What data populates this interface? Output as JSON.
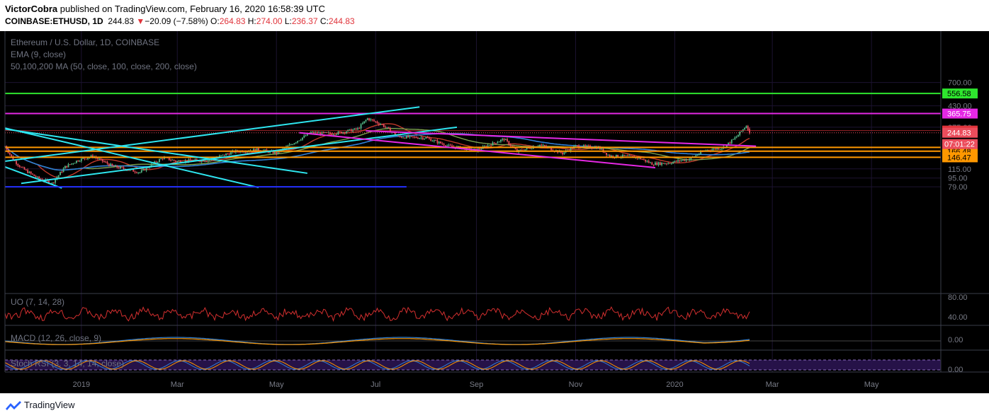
{
  "header": {
    "publisher": "VictorCobra",
    "published_line": " published on TradingView.com, February 16, 2020 16:58:39 UTC",
    "symbol": "COINBASE:ETHUSD, 1D",
    "last": "244.83",
    "change_arrow": "▼",
    "change": "−20.09 (−7.58%)",
    "o_label": "O:",
    "o": "264.83",
    "h_label": "H:",
    "h": "274.00",
    "l_label": "L:",
    "l": "236.37",
    "c_label": "C:",
    "c": "244.83"
  },
  "legend": {
    "title": "Ethereum / U.S. Dollar, 1D, COINBASE",
    "ema": "EMA (9, close)",
    "ma": "50,100,200 MA (50, close, 100, close, 200, close)"
  },
  "indicators": {
    "uo": "UO (7, 14, 28)",
    "macd": "MACD (12, 26, close, 9)",
    "stoch": "Stoch RSI (3, 3, 14, 14, close)"
  },
  "footer": {
    "brand": "TradingView"
  },
  "colors": {
    "up": "#53b987",
    "down": "#eb4d5c",
    "ema": "#c0392b",
    "ma50": "#7ba24f",
    "ma200": "#2f7fd6",
    "cyan": "#2ee6f0",
    "magenta": "#e528e5",
    "green": "#2ee62e",
    "orange": "#ff9800",
    "navy": "#2430ff",
    "uo": "#d32f2f"
  },
  "chart_data": {
    "type": "candlestick",
    "symbol": "COINBASE:ETHUSD",
    "interval": "1D",
    "price_axis_scale": "log",
    "price_ticks": [
      700,
      430,
      275,
      115,
      95,
      79
    ],
    "x_tick_labels": [
      "2019",
      "Mar",
      "May",
      "Jul",
      "Sep",
      "Nov",
      "2020",
      "Mar",
      "May"
    ],
    "time_range": [
      "2018-11-15",
      "2020-02-16"
    ],
    "last_candle": {
      "open": 264.83,
      "high": 274.0,
      "low": 236.37,
      "close": 244.83
    },
    "price_path": [
      [
        "2018-11-15",
        185
      ],
      [
        "2018-11-20",
        140
      ],
      [
        "2018-11-25",
        118
      ],
      [
        "2018-12-05",
        95
      ],
      [
        "2018-12-14",
        85
      ],
      [
        "2018-12-22",
        120
      ],
      [
        "2018-12-30",
        138
      ],
      [
        "2019-01-08",
        150
      ],
      [
        "2019-01-20",
        122
      ],
      [
        "2019-02-06",
        107
      ],
      [
        "2019-02-20",
        145
      ],
      [
        "2019-03-01",
        135
      ],
      [
        "2019-03-20",
        138
      ],
      [
        "2019-04-05",
        165
      ],
      [
        "2019-04-20",
        172
      ],
      [
        "2019-05-01",
        160
      ],
      [
        "2019-05-12",
        200
      ],
      [
        "2019-05-22",
        245
      ],
      [
        "2019-06-05",
        240
      ],
      [
        "2019-06-20",
        265
      ],
      [
        "2019-06-26",
        330
      ],
      [
        "2019-07-05",
        290
      ],
      [
        "2019-07-15",
        225
      ],
      [
        "2019-08-01",
        220
      ],
      [
        "2019-08-15",
        185
      ],
      [
        "2019-09-01",
        170
      ],
      [
        "2019-09-18",
        215
      ],
      [
        "2019-09-26",
        165
      ],
      [
        "2019-10-10",
        190
      ],
      [
        "2019-10-24",
        160
      ],
      [
        "2019-11-01",
        185
      ],
      [
        "2019-11-15",
        180
      ],
      [
        "2019-11-22",
        150
      ],
      [
        "2019-12-01",
        150
      ],
      [
        "2019-12-10",
        145
      ],
      [
        "2019-12-18",
        128
      ],
      [
        "2019-12-28",
        130
      ],
      [
        "2020-01-10",
        142
      ],
      [
        "2020-01-20",
        170
      ],
      [
        "2020-01-31",
        180
      ],
      [
        "2020-02-08",
        225
      ],
      [
        "2020-02-14",
        285
      ],
      [
        "2020-02-16",
        244.83
      ]
    ],
    "horizontal_levels": [
      {
        "value": 556.58,
        "label": "556.58",
        "color": "#2ee62e"
      },
      {
        "value": 365.75,
        "label": "365.75",
        "color": "#e528e5"
      },
      {
        "value": 256.21,
        "label": "256.21",
        "color": "#e0343b"
      },
      {
        "value": 180.17,
        "label": "180.17",
        "color": "#ff9800"
      },
      {
        "value": 166.48,
        "label": "166.48",
        "color": "#ff9800"
      },
      {
        "value": 146.47,
        "label": "146.47",
        "color": "#ff9800"
      }
    ],
    "last_price_label": "244.83",
    "countdown": "07:01:22",
    "trendlines": [
      {
        "color": "cyan",
        "from": [
          "2018-11-15",
          135
        ],
        "to": [
          "2019-07-28",
          420
        ]
      },
      {
        "color": "cyan",
        "from": [
          "2018-11-25",
          85
        ],
        "to": [
          "2019-08-20",
          275
        ]
      },
      {
        "color": "cyan",
        "from": [
          "2018-11-15",
          270
        ],
        "to": [
          "2019-04-20",
          78
        ]
      },
      {
        "color": "cyan",
        "from": [
          "2018-11-15",
          120
        ],
        "to": [
          "2018-12-20",
          77
        ]
      },
      {
        "color": "cyan",
        "from": [
          "2018-11-15",
          265
        ],
        "to": [
          "2019-05-20",
          105
        ]
      },
      {
        "color": "magenta",
        "from": [
          "2019-05-15",
          245
        ],
        "to": [
          "2019-12-20",
          118
        ]
      },
      {
        "color": "magenta",
        "from": [
          "2019-06-25",
          255
        ],
        "to": [
          "2020-02-20",
          185
        ]
      },
      {
        "color": "navy",
        "from": [
          "2018-11-15",
          79
        ],
        "to": [
          "2019-07-20",
          79
        ]
      }
    ],
    "indicator_ticks": {
      "uo": [
        "80.00",
        "40.00"
      ],
      "macd": [
        "0.00"
      ],
      "stoch": [
        "0.00"
      ]
    }
  }
}
